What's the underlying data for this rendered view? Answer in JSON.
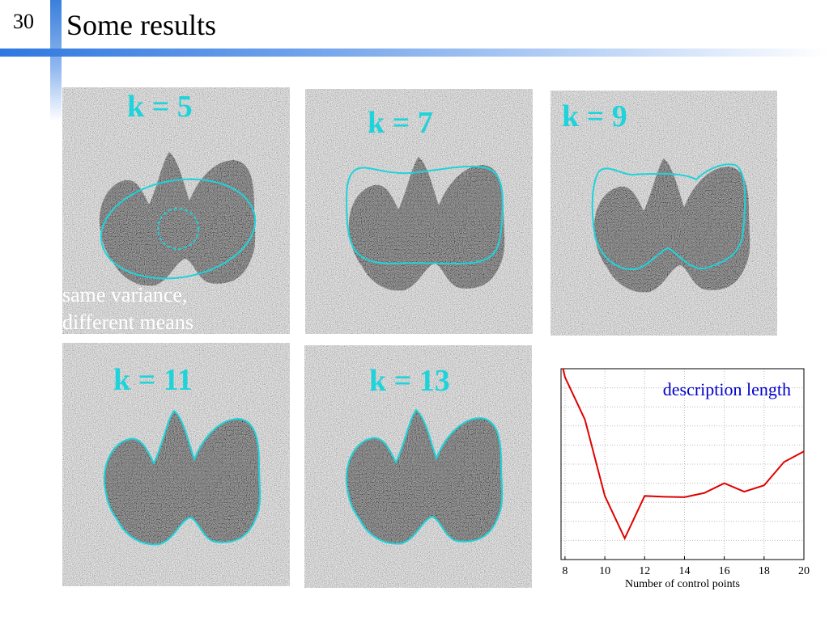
{
  "slide": {
    "number": "30",
    "title": "Some results"
  },
  "panels": [
    {
      "k_label": "k = 5"
    },
    {
      "k_label": "k = 7"
    },
    {
      "k_label": "k = 9"
    },
    {
      "k_label": "k = 11"
    },
    {
      "k_label": "k = 13"
    }
  ],
  "caption": {
    "line1": "same variance,",
    "line2": "different means"
  },
  "colors": {
    "contour": "#1fd3da",
    "curve": "#e00000",
    "annotation": "#0000cc",
    "accent_blue": "#2f78e0"
  },
  "chart_data": {
    "type": "line",
    "title": "",
    "annotation": "description length",
    "xlabel": "Number of control points",
    "ylabel": "",
    "xlim": [
      7.8,
      20
    ],
    "xticks": [
      8,
      10,
      12,
      14,
      16,
      18,
      20
    ],
    "grid": true,
    "series": [
      {
        "x": [
          7.9,
          8,
          9,
          10,
          11,
          12,
          13,
          14,
          15,
          16,
          17,
          18,
          19,
          20
        ],
        "y": [
          9.2,
          9.0,
          8.0,
          6.2,
          5.2,
          6.2,
          6.18,
          6.17,
          6.27,
          6.5,
          6.3,
          6.45,
          7.0,
          7.25
        ]
      }
    ],
    "ylim": [
      4.7,
      9.2
    ]
  }
}
